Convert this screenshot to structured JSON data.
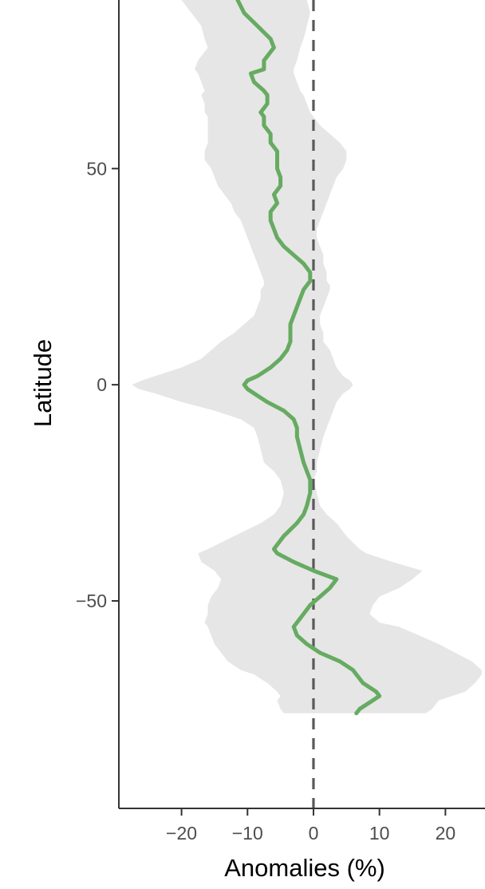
{
  "chart_data": {
    "type": "line",
    "xlabel": "Anomalies (%)",
    "ylabel": "Latitude",
    "xlim": [
      -29.5,
      26
    ],
    "ylim": [
      -98,
      89
    ],
    "x_ticks": [
      -20,
      -10,
      0,
      10,
      20
    ],
    "x_tick_labels": [
      "−20",
      "−10",
      "0",
      "10",
      "20"
    ],
    "y_ticks": [
      -50,
      0,
      50
    ],
    "y_tick_labels": [
      "−50",
      "0",
      "50"
    ],
    "reference_line": {
      "x": 0,
      "style": "dashed",
      "color": "#595959"
    },
    "grid": false,
    "legend": "none",
    "colors": {
      "line": "#66ab61",
      "band": "#e6e6e6",
      "axis": "#333333",
      "tick_text": "#4d4d4d"
    },
    "series": [
      {
        "lat": [
          89,
          86,
          83,
          80,
          78,
          75,
          73,
          72,
          70,
          68,
          67,
          65,
          63,
          62,
          60,
          58,
          56,
          54,
          52,
          50,
          48,
          46,
          44,
          42,
          40,
          38,
          36,
          34,
          32,
          30,
          28,
          26,
          24,
          23,
          22,
          20,
          18,
          16,
          14,
          12,
          10,
          8,
          6,
          4,
          2,
          1,
          0,
          -1,
          -2,
          -4,
          -6,
          -8,
          -10,
          -12,
          -15,
          -18,
          -20,
          -22,
          -25,
          -28,
          -30,
          -32,
          -35,
          -38,
          -39,
          -41,
          -43,
          -45,
          -47,
          -49,
          -51,
          -53,
          -55,
          -56,
          -58,
          -60,
          -62,
          -64,
          -66,
          -67,
          -69,
          -71,
          -72,
          -73,
          -75,
          -76
        ],
        "mean": [
          -11.5,
          -10.5,
          -8.5,
          -6.5,
          -6.0,
          -7.5,
          -7.5,
          -9.5,
          -9.0,
          -7.5,
          -7.0,
          -7.0,
          -8.0,
          -7.5,
          -7.5,
          -6.5,
          -6.5,
          -5.5,
          -5.5,
          -5.5,
          -5.0,
          -5.0,
          -6.0,
          -5.5,
          -6.5,
          -6.5,
          -6.0,
          -5.5,
          -4.5,
          -3.0,
          -1.5,
          -0.5,
          -0.5,
          -1.0,
          -1.5,
          -2.0,
          -2.5,
          -3.0,
          -3.5,
          -3.5,
          -3.5,
          -4.0,
          -5.0,
          -6.5,
          -8.5,
          -10.0,
          -10.5,
          -10.0,
          -9.0,
          -7.0,
          -4.5,
          -3.0,
          -2.5,
          -2.5,
          -2.0,
          -1.5,
          -1.0,
          -0.5,
          -0.5,
          -1.0,
          -1.5,
          -2.5,
          -4.5,
          -6.0,
          -5.5,
          -3.0,
          0.0,
          3.5,
          2.5,
          1.0,
          -0.5,
          -1.5,
          -2.5,
          -3.0,
          -2.5,
          -1.0,
          1.0,
          4.0,
          6.0,
          6.5,
          7.5,
          9.5,
          10.0,
          9.0,
          7.0,
          6.5
        ],
        "lower": [
          -20.0,
          -18.5,
          -17.0,
          -16.5,
          -16.0,
          -17.5,
          -18.0,
          -17.5,
          -17.0,
          -16.5,
          -17.0,
          -16.5,
          -16.5,
          -16.0,
          -16.0,
          -16.0,
          -16.0,
          -16.5,
          -16.5,
          -15.5,
          -15.0,
          -14.5,
          -13.5,
          -12.5,
          -12.0,
          -11.0,
          -10.5,
          -10.0,
          -9.5,
          -9.0,
          -8.5,
          -8.0,
          -7.5,
          -7.5,
          -8.0,
          -8.0,
          -8.5,
          -9.0,
          -10.5,
          -12.0,
          -14.0,
          -15.5,
          -17.0,
          -20.0,
          -24.0,
          -26.0,
          -27.5,
          -26.5,
          -24.0,
          -20.0,
          -15.0,
          -11.0,
          -9.0,
          -8.5,
          -8.0,
          -7.5,
          -6.0,
          -5.0,
          -4.5,
          -5.0,
          -6.0,
          -8.0,
          -12.0,
          -16.0,
          -17.5,
          -17.0,
          -15.0,
          -14.0,
          -14.5,
          -15.5,
          -16.0,
          -16.0,
          -16.5,
          -16.0,
          -15.5,
          -15.0,
          -14.0,
          -13.0,
          -11.0,
          -9.0,
          -7.0,
          -5.5,
          -5.0,
          -5.5,
          -5.0,
          -4.5
        ],
        "upper": [
          -1.0,
          -0.5,
          -1.0,
          -1.5,
          -2.0,
          -2.5,
          -3.0,
          -3.0,
          -2.5,
          -2.0,
          -1.5,
          -1.0,
          -0.5,
          0.0,
          1.0,
          2.5,
          4.0,
          5.0,
          5.0,
          4.5,
          3.5,
          3.0,
          2.5,
          2.0,
          1.5,
          1.0,
          0.5,
          0.5,
          1.0,
          1.5,
          1.5,
          2.0,
          2.0,
          2.5,
          2.5,
          2.0,
          1.5,
          1.0,
          1.0,
          1.5,
          1.5,
          2.5,
          3.0,
          3.5,
          4.5,
          5.5,
          6.0,
          5.5,
          4.5,
          3.5,
          3.0,
          2.5,
          2.0,
          1.5,
          1.0,
          0.5,
          0.5,
          0.0,
          0.5,
          1.0,
          2.0,
          3.5,
          5.0,
          7.0,
          8.0,
          12.0,
          16.5,
          15.0,
          13.0,
          10.0,
          9.0,
          8.5,
          10.0,
          13.0,
          16.0,
          19.0,
          21.5,
          24.0,
          25.5,
          25.5,
          24.5,
          23.0,
          21.0,
          19.0,
          18.0,
          17.0
        ]
      }
    ]
  }
}
